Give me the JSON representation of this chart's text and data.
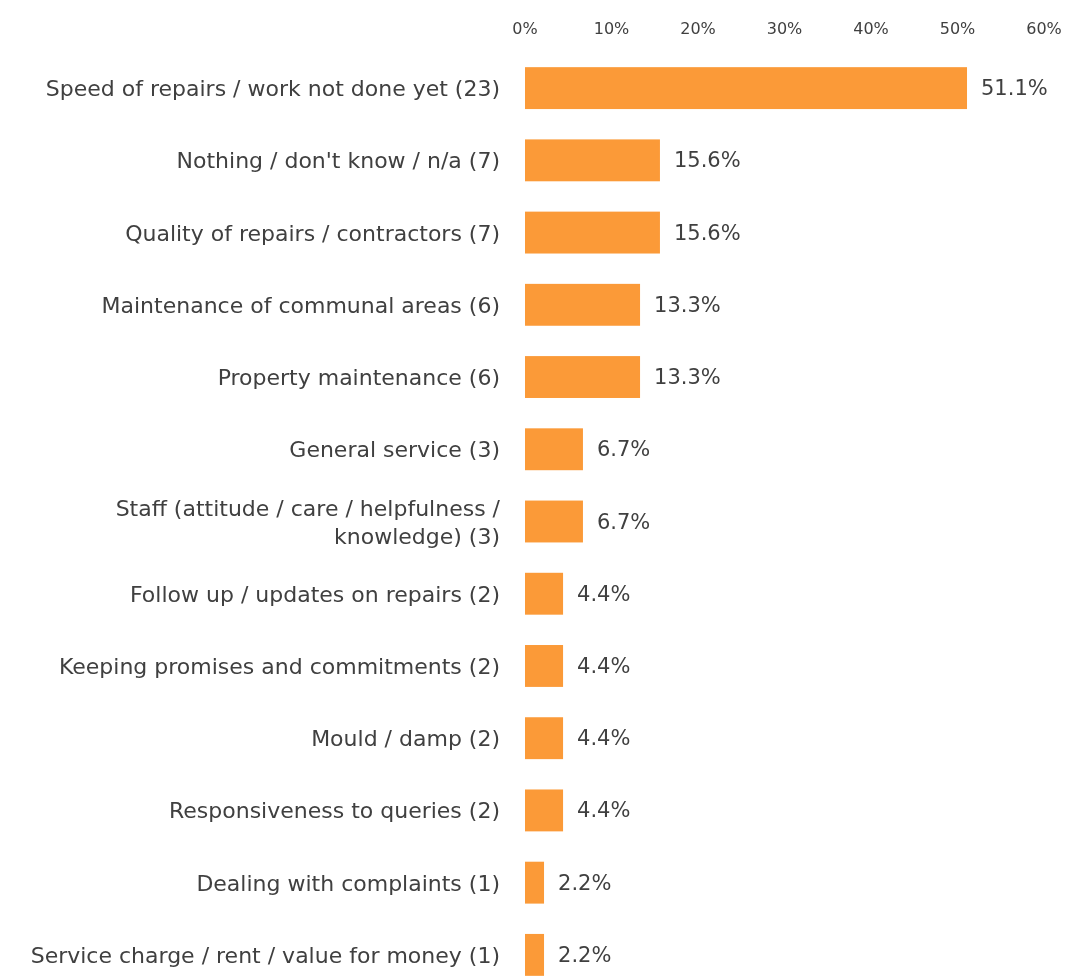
{
  "chart_data": {
    "type": "bar",
    "orientation": "horizontal",
    "categories": [
      "Speed of repairs / work not done yet (23)",
      "Nothing / don't know / n/a (7)",
      "Quality of repairs / contractors (7)",
      "Maintenance of communal areas (6)",
      "Property maintenance (6)",
      "General service (3)",
      "Staff (attitude / care / helpfulness / knowledge) (3)",
      "Follow up / updates on repairs (2)",
      "Keeping promises and commitments (2)",
      "Mould / damp (2)",
      "Responsiveness to queries (2)",
      "Dealing with complaints (1)",
      "Service charge / rent / value for money (1)"
    ],
    "values": [
      51.1,
      15.6,
      15.6,
      13.3,
      13.3,
      6.7,
      6.7,
      4.4,
      4.4,
      4.4,
      4.4,
      2.2,
      2.2
    ],
    "value_labels": [
      "51.1%",
      "15.6%",
      "15.6%",
      "13.3%",
      "13.3%",
      "6.7%",
      "6.7%",
      "4.4%",
      "4.4%",
      "4.4%",
      "4.4%",
      "2.2%",
      "2.2%"
    ],
    "color": "#fb9a38",
    "xlim": [
      0,
      60
    ],
    "xticks": [
      {
        "value": 0,
        "label": "0%"
      },
      {
        "value": 10,
        "label": "10%"
      },
      {
        "value": 20,
        "label": "20%"
      },
      {
        "value": 30,
        "label": "30%"
      },
      {
        "value": 40,
        "label": "40%"
      },
      {
        "value": 50,
        "label": "50%"
      },
      {
        "value": 60,
        "label": "60%"
      }
    ]
  }
}
